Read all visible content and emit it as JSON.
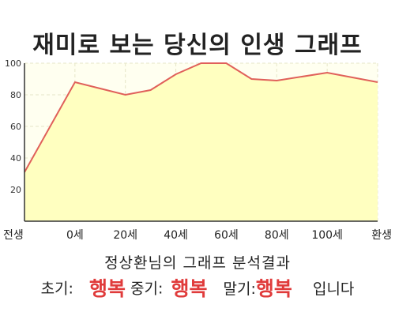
{
  "title": "재미로 보는 당신의 인생 그래프",
  "subtitle": "정상환님의 그래프 분석결과",
  "summary": {
    "early_label": "초기:",
    "early_value": "행복",
    "mid_label": "중기:",
    "mid_value": "행복",
    "late_label": "말기:",
    "late_value": "행복",
    "ending": "입니다"
  },
  "colors": {
    "line": "#e0605a",
    "fill": "#ffffc0",
    "plot_bg": "#fffff0",
    "grid": "#e6e6c8",
    "highlight": "#e03b3b"
  },
  "chart_data": {
    "type": "area",
    "title": "재미로 보는 당신의 인생 그래프",
    "xlabel": "",
    "ylabel": "",
    "x_tick_labels": [
      "전생",
      "0세",
      "20세",
      "40세",
      "60세",
      "80세",
      "100세",
      "환생"
    ],
    "x_tick_positions": [
      -20,
      0,
      20,
      40,
      60,
      80,
      100,
      120
    ],
    "xlim": [
      -20,
      120
    ],
    "ylim": [
      0,
      100
    ],
    "y_ticks": [
      20,
      40,
      60,
      80,
      100
    ],
    "grid": true,
    "series": [
      {
        "x": [
          -20,
          0,
          20,
          30,
          40,
          50,
          60,
          70,
          80,
          100,
          120
        ],
        "y": [
          31,
          88,
          80,
          83,
          93,
          100,
          100,
          90,
          89,
          94,
          88
        ]
      }
    ]
  }
}
